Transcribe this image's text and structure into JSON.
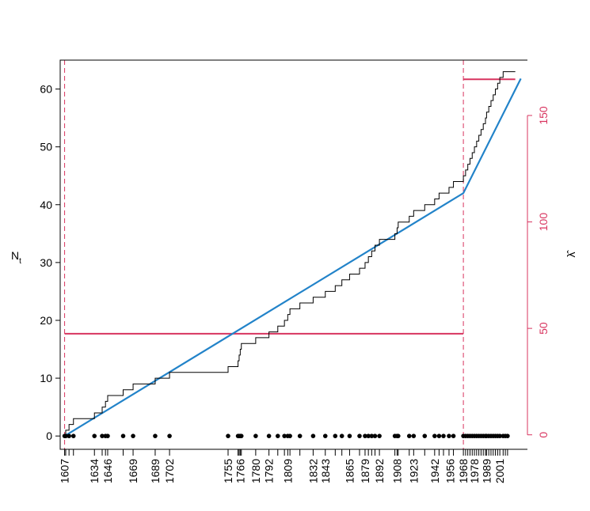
{
  "chart_data": {
    "type": "line",
    "title": "",
    "xlabel": "",
    "ylabel": "N",
    "ylabel_subscript": "t",
    "y2label": "λ̂",
    "xlim": [
      1603,
      2026
    ],
    "ylim": [
      -2.3,
      65
    ],
    "y2lim": [
      -6.8,
      176
    ],
    "grid": false,
    "colors": {
      "step": "#000000",
      "fit": "#2283c9",
      "rate": "#d8345f",
      "axis": "#000000"
    },
    "yticks": [
      0,
      10,
      20,
      30,
      40,
      50,
      60
    ],
    "y2ticks": [
      0,
      50,
      100,
      150
    ],
    "xtick_labels": [
      1607,
      1634,
      1646,
      1669,
      1689,
      1702,
      1755,
      1766,
      1780,
      1792,
      1809,
      1832,
      1843,
      1865,
      1879,
      1892,
      1908,
      1923,
      1942,
      1956,
      1968,
      1978,
      1989,
      2001
    ],
    "change_points": [
      1607,
      1968
    ],
    "events": [
      1607,
      1608,
      1611,
      1615,
      1634,
      1641,
      1644,
      1646,
      1660,
      1669,
      1689,
      1702,
      1755,
      1764,
      1765,
      1766,
      1767,
      1780,
      1792,
      1800,
      1806,
      1809,
      1811,
      1820,
      1832,
      1843,
      1852,
      1858,
      1865,
      1874,
      1879,
      1882,
      1885,
      1888,
      1892,
      1906,
      1908,
      1909,
      1919,
      1923,
      1933,
      1942,
      1946,
      1950,
      1955,
      1959,
      1968,
      1970,
      1972,
      1974,
      1976,
      1978,
      1980,
      1982,
      1984,
      1986,
      1988,
      1989,
      1991,
      1993,
      1995,
      1997,
      1999,
      2001,
      2004,
      2006,
      2008
    ],
    "step_series": {
      "name": "",
      "x": [
        1607,
        1608,
        1611,
        1615,
        1634,
        1641,
        1644,
        1646,
        1660,
        1669,
        1689,
        1702,
        1755,
        1764,
        1765,
        1766,
        1767,
        1780,
        1792,
        1800,
        1806,
        1809,
        1811,
        1820,
        1832,
        1843,
        1852,
        1858,
        1865,
        1874,
        1879,
        1882,
        1885,
        1888,
        1892,
        1906,
        1908,
        1909,
        1919,
        1923,
        1933,
        1942,
        1946,
        1950,
        1955,
        1959,
        1968,
        1970,
        1972,
        1974,
        1976,
        1978,
        1980,
        1982,
        1984,
        1986,
        1988,
        1989,
        1991,
        1993,
        1995,
        1997,
        1999,
        2001,
        2004,
        2006,
        2008,
        2015
      ],
      "y": [
        0,
        1,
        2,
        3,
        4,
        5,
        6,
        7,
        8,
        9,
        10,
        11,
        12,
        13,
        14,
        15,
        16,
        17,
        18,
        19,
        20,
        21,
        22,
        23,
        24,
        25,
        26,
        27,
        28,
        29,
        30,
        31,
        32,
        33,
        34,
        35,
        36,
        37,
        38,
        39,
        40,
        41,
        42,
        42,
        43,
        44,
        45,
        46,
        47,
        48,
        49,
        50,
        51,
        52,
        53,
        54,
        55,
        56,
        57,
        58,
        59,
        60,
        61,
        62,
        63,
        63,
        63,
        63
      ]
    },
    "fit_series": {
      "name": "",
      "x": [
        1607,
        1968,
        2020
      ],
      "y": [
        0,
        42,
        61.8
      ]
    },
    "rate_series": [
      {
        "name": "",
        "x": [
          1607,
          1968
        ],
        "y": [
          47.5,
          47.5
        ]
      },
      {
        "name": "",
        "x": [
          1968,
          2015
        ],
        "y": [
          167,
          167
        ]
      }
    ]
  }
}
